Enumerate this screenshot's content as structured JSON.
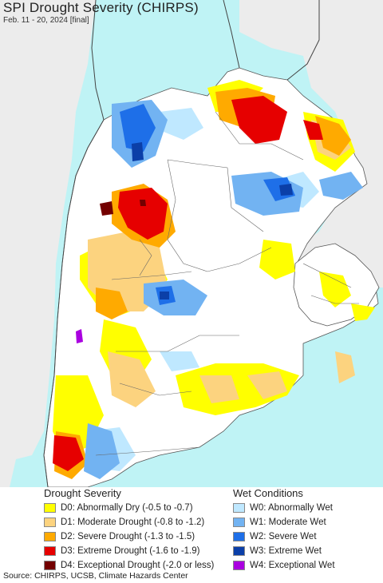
{
  "header": {
    "title": "SPI Drought Severity (CHIRPS)",
    "subtitle": "Feb. 11 - 20, 2024 [final]"
  },
  "colors": {
    "ocean": "#bff3f5",
    "land_outside": "#ececec",
    "land_region": "#ffffff",
    "border": "#555555"
  },
  "legend": {
    "drought": {
      "heading": "Drought Severity",
      "items": [
        {
          "label": "D0: Abnormally Dry (-0.5 to -0.7)",
          "color": "#ffff00"
        },
        {
          "label": "D1: Moderate Drought (-0.8 to -1.2)",
          "color": "#fcd37f"
        },
        {
          "label": "D2: Severe Drought (-1.3 to -1.5)",
          "color": "#ffaa00"
        },
        {
          "label": "D3: Extreme Drought (-1.6 to -1.9)",
          "color": "#e60000"
        },
        {
          "label": "D4: Exceptional Drought (-2.0 or less)",
          "color": "#730000"
        }
      ]
    },
    "wet": {
      "heading": "Wet Conditions",
      "items": [
        {
          "label": "W0: Abnormally Wet",
          "color": "#bfe8ff"
        },
        {
          "label": "W1: Moderate Wet",
          "color": "#72b3f2"
        },
        {
          "label": "W2: Severe Wet",
          "color": "#1e6fe8"
        },
        {
          "label": "W3: Extreme Wet",
          "color": "#0b3fa8"
        },
        {
          "label": "W4: Exceptional Wet",
          "color": "#aa00e0"
        }
      ]
    }
  },
  "footer": {
    "source": "Source: CHIRPS, UCSB, Climate Hazards Center"
  }
}
